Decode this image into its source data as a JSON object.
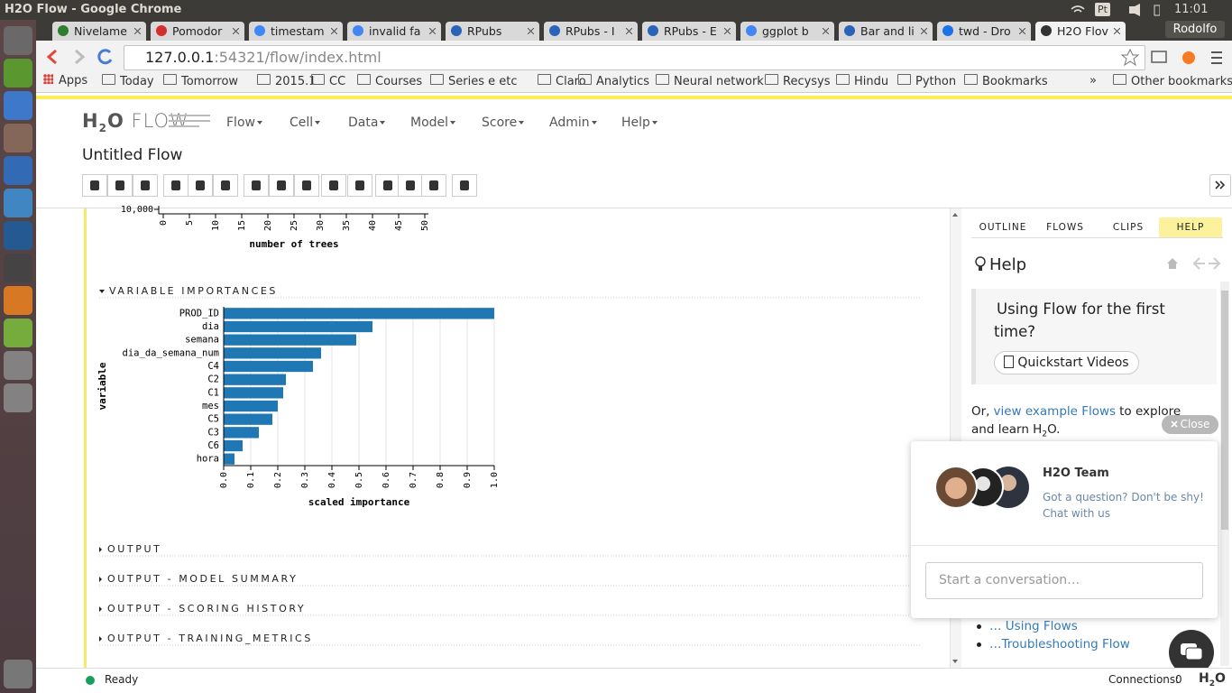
{
  "window_title": "H2O Flow - Google Chrome",
  "system": {
    "keyboard": "Pt",
    "time": "11:01",
    "user": "Rodolfo"
  },
  "tabs": [
    "Nivelame",
    "Pomodor",
    "timestam",
    "invalid fa",
    "RPubs",
    "RPubs - I",
    "RPubs - E",
    "ggplot b",
    "Bar and li",
    "twd - Dro",
    "H2O Flov"
  ],
  "url": {
    "host": "127.0.0.1",
    "rest": ":54321/flow/index.html"
  },
  "bookmarks": [
    "Apps",
    "Today",
    "Tomorrow",
    "2015.1",
    "CC",
    "Courses",
    "Series e etc",
    "Claro",
    "Analytics",
    "Neural network",
    "Recysys",
    "Hindu",
    "Python",
    "Bookmarks"
  ],
  "bookmarks_more": "»",
  "other_bookmarks": "Other bookmarks",
  "logo": {
    "h": "H",
    "sub": "2",
    "o": "O",
    "flow": "FLOW"
  },
  "menu": [
    "Flow",
    "Cell",
    "Data",
    "Model",
    "Score",
    "Admin",
    "Help"
  ],
  "flow_title": "Untitled Flow",
  "sections": [
    "VARIABLE IMPORTANCES",
    "OUTPUT",
    "OUTPUT - MODEL SUMMARY",
    "OUTPUT - SCORING HISTORY",
    "OUTPUT - TRAINING_METRICS"
  ],
  "chart_data": [
    {
      "type": "line",
      "x_label": "number of trees",
      "xlim": [
        0,
        50
      ],
      "xticks": [
        0,
        5,
        10,
        15,
        20,
        25,
        30,
        35,
        40,
        45,
        50
      ],
      "yticks": [
        {
          "value": 10000,
          "label": "10,000"
        }
      ]
    },
    {
      "type": "hbar",
      "x_label": "scaled importance",
      "y_label": "variable",
      "categories": [
        "PROD_ID",
        "dia",
        "semana",
        "dia_da_semana_num",
        "C4",
        "C2",
        "C1",
        "mes",
        "C5",
        "C3",
        "C6",
        "hora"
      ],
      "values": [
        1.0,
        0.55,
        0.49,
        0.36,
        0.33,
        0.23,
        0.22,
        0.2,
        0.18,
        0.13,
        0.07,
        0.04
      ],
      "color": "#1f77b4",
      "xlim": [
        0,
        1
      ],
      "xticks": [
        {
          "value": 0,
          "label": "0.0"
        },
        0.1,
        0.2,
        0.3,
        0.4,
        0.5,
        0.6,
        0.7,
        0.8,
        0.9,
        {
          "value": 1,
          "label": "1.0"
        }
      ],
      "grid": true
    }
  ],
  "panel_tabs": [
    "OUTLINE",
    "FLOWS",
    "CLIPS",
    "HELP"
  ],
  "help": {
    "title": "Help",
    "card_title": "Using Flow for the first time?",
    "button": "Quickstart Videos",
    "or": "Or,",
    "link": "view example Flows",
    "rest": "to explore and learn H",
    "sub": "2",
    "end": "O.",
    "links": [
      "… Using Flows",
      "…Troubleshooting Flow"
    ]
  },
  "chat": {
    "close": "Close",
    "team": "H2O Team",
    "line1": "Got a question? Don't be shy!",
    "line2": "Chat with us",
    "placeholder": "Start a conversation…"
  },
  "status": {
    "ready": "Ready",
    "connections_label": "Connections:",
    "connections": "0",
    "logo": {
      "h": "H",
      "sub": "2",
      "o": "O"
    }
  }
}
